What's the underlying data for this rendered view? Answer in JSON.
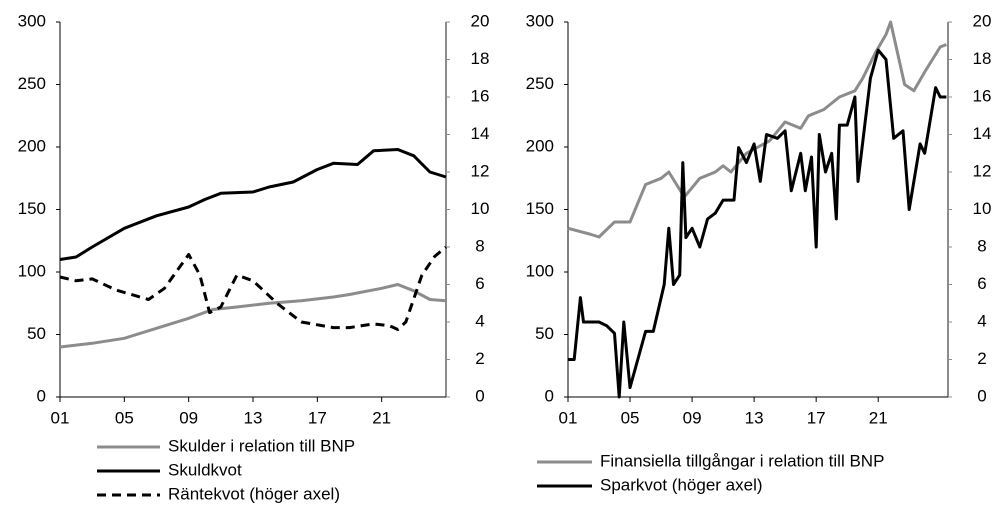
{
  "chart_data": [
    {
      "type": "line",
      "xlim": [
        1,
        25
      ],
      "ylim": [
        0,
        300
      ],
      "y2lim": [
        0,
        20
      ],
      "xticks": [
        {
          "value": 1,
          "label": "01"
        },
        {
          "value": 5,
          "label": "05"
        },
        {
          "value": 9,
          "label": "09"
        },
        13,
        17,
        21
      ],
      "yticks": [
        0,
        50,
        100,
        150,
        200,
        250,
        300
      ],
      "y2ticks": [
        0,
        2,
        4,
        6,
        8,
        10,
        12,
        14,
        16,
        18,
        20
      ],
      "series": [
        {
          "name": "Skulder i relation till BNP",
          "color": "#8c8c8c",
          "style": "solid",
          "x": [
            1,
            3,
            5,
            7,
            9,
            10.5,
            12,
            14,
            16,
            18,
            19,
            21,
            22,
            23,
            24,
            25
          ],
          "values": [
            40,
            43,
            47,
            55,
            63,
            70,
            72,
            75,
            77,
            80,
            82,
            87,
            90,
            85,
            78,
            77
          ]
        },
        {
          "name": "Skuldkvot",
          "color": "#000000",
          "style": "solid",
          "x": [
            1,
            2,
            3,
            5,
            7,
            9,
            10,
            11,
            13,
            14,
            15.5,
            17,
            18,
            19.5,
            20.5,
            22,
            23,
            24,
            25
          ],
          "values": [
            110,
            112,
            120,
            135,
            145,
            152,
            158,
            163,
            164,
            168,
            172,
            182,
            187,
            186,
            197,
            198,
            193,
            180,
            176
          ]
        },
        {
          "name": "Räntekvot (höger axel)",
          "color": "#000000",
          "style": "dashed",
          "axis": "y2",
          "x": [
            1,
            2,
            3,
            4.5,
            6.5,
            7.5,
            8.5,
            9,
            9.7,
            10.3,
            11,
            12,
            13,
            14.5,
            16,
            18,
            19,
            20.5,
            21.5,
            22,
            22.5,
            23.5,
            24.3,
            25
          ],
          "values": [
            6.4,
            6.2,
            6.3,
            5.7,
            5.2,
            5.8,
            7,
            7.6,
            6.5,
            4.5,
            4.8,
            6.5,
            6.2,
            5,
            4,
            3.7,
            3.7,
            3.9,
            3.8,
            3.6,
            4,
            6.5,
            7.5,
            8
          ]
        }
      ]
    },
    {
      "type": "line",
      "xlim": [
        1,
        25.5
      ],
      "ylim": [
        0,
        300
      ],
      "y2lim": [
        0,
        20
      ],
      "xticks": [
        {
          "value": 1,
          "label": "01"
        },
        {
          "value": 5,
          "label": "05"
        },
        {
          "value": 9,
          "label": "09"
        },
        13,
        17,
        21
      ],
      "yticks": [
        0,
        50,
        100,
        150,
        200,
        250,
        300
      ],
      "y2ticks": [
        0,
        2,
        4,
        6,
        8,
        10,
        12,
        14,
        16,
        18,
        20
      ],
      "series": [
        {
          "name": "Finansiella tillgångar i relation till BNP",
          "color": "#8c8c8c",
          "style": "solid",
          "x": [
            1,
            2.5,
            3,
            4,
            5,
            5.5,
            6,
            7,
            7.5,
            8.5,
            9.5,
            10.5,
            11,
            11.5,
            12.5,
            14,
            15,
            16,
            16.5,
            17.5,
            18.5,
            19.5,
            20,
            20.8,
            21.5,
            21.8,
            22.7,
            23.3,
            24,
            25,
            25.4
          ],
          "values": [
            135,
            130,
            128,
            140,
            140,
            155,
            170,
            175,
            180,
            160,
            175,
            180,
            185,
            180,
            195,
            205,
            220,
            215,
            225,
            230,
            240,
            245,
            255,
            275,
            290,
            300,
            250,
            245,
            260,
            280,
            282
          ]
        },
        {
          "name": "Sparkvot (höger axel)",
          "color": "#000000",
          "style": "solid",
          "axis": "y2",
          "x": [
            1,
            1.4,
            1.8,
            2,
            3,
            3.5,
            4,
            4.3,
            4.6,
            5,
            5.5,
            6,
            6.5,
            7.2,
            7.5,
            7.8,
            8.2,
            8.4,
            8.6,
            9,
            9.5,
            10,
            10.5,
            11,
            11.7,
            12,
            12.5,
            13,
            13.4,
            13.8,
            14.5,
            15,
            15.4,
            16,
            16.3,
            16.7,
            17,
            17.2,
            17.6,
            18,
            18.3,
            18.5,
            19,
            19.5,
            19.7,
            20.5,
            21,
            21.5,
            22,
            22.6,
            23,
            23.7,
            24,
            24.3,
            24.7,
            25,
            25.4
          ],
          "values": [
            2,
            2,
            5.3,
            4,
            4,
            3.8,
            3.4,
            0,
            4,
            0.5,
            2,
            3.5,
            3.5,
            6,
            9,
            6,
            6.5,
            12.5,
            8.5,
            9,
            8,
            9.5,
            9.8,
            10.5,
            10.5,
            13.3,
            12.5,
            13.5,
            11.5,
            14,
            13.8,
            14.2,
            11,
            13,
            11,
            12.8,
            8,
            14,
            12,
            13,
            9.5,
            14.5,
            14.5,
            16,
            11.5,
            17,
            18.5,
            18,
            13.8,
            14.2,
            10,
            13.5,
            13,
            14.5,
            16.5,
            16,
            16
          ]
        }
      ]
    }
  ]
}
